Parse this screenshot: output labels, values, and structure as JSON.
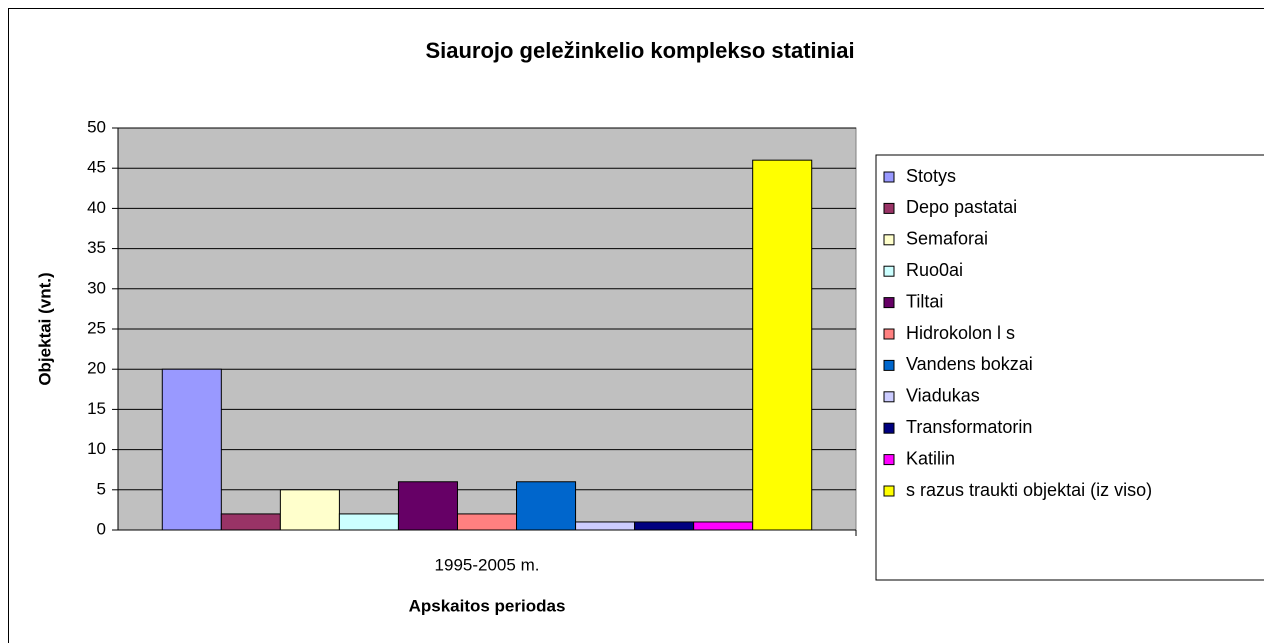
{
  "chart_data": {
    "type": "bar",
    "title": "Siaurojo geležinkelio komplekso statiniai",
    "x_label": "Apskaitos periodas",
    "y_label": "Objektai (vnt.)",
    "categories": [
      "1995-2005 m."
    ],
    "series": [
      {
        "name": "Stotys",
        "color": "#9999ff",
        "values": [
          20
        ]
      },
      {
        "name": "Depo pastatai",
        "color": "#993366",
        "values": [
          2
        ]
      },
      {
        "name": "Semaforai",
        "color": "#ffffcc",
        "values": [
          5
        ]
      },
      {
        "name": "Ruo0ai",
        "color": "#ccffff",
        "values": [
          2
        ]
      },
      {
        "name": "Tiltai",
        "color": "#660066",
        "values": [
          6
        ]
      },
      {
        "name": "Hidrokolon l s",
        "color": "#ff8080",
        "values": [
          2
        ]
      },
      {
        "name": "Vandens bokzai",
        "color": "#0066cc",
        "values": [
          6
        ]
      },
      {
        "name": "Viadukas",
        "color": "#ccccff",
        "values": [
          1
        ]
      },
      {
        "name": "Transformatorin",
        "color": "#000080",
        "values": [
          1
        ]
      },
      {
        "name": "Katilin",
        "color": "#ff00ff",
        "values": [
          1
        ]
      },
      {
        "name": "s razus traukti objektai (iz viso)",
        "color": "#ffff00",
        "values": [
          46
        ]
      }
    ],
    "ylim": [
      0,
      50
    ],
    "yticks": [
      0,
      5,
      10,
      15,
      20,
      25,
      30,
      35,
      40,
      45,
      50
    ],
    "grid": true,
    "plot_background": "#c0c0c0",
    "legend": "right"
  }
}
